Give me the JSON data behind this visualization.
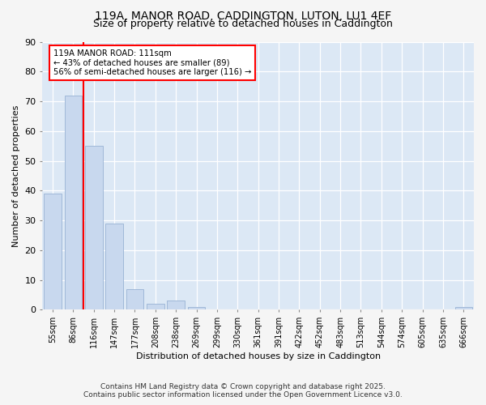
{
  "title_line1": "119A, MANOR ROAD, CADDINGTON, LUTON, LU1 4EF",
  "title_line2": "Size of property relative to detached houses in Caddington",
  "xlabel": "Distribution of detached houses by size in Caddington",
  "ylabel": "Number of detached properties",
  "categories": [
    "55sqm",
    "86sqm",
    "116sqm",
    "147sqm",
    "177sqm",
    "208sqm",
    "238sqm",
    "269sqm",
    "299sqm",
    "330sqm",
    "361sqm",
    "391sqm",
    "422sqm",
    "452sqm",
    "483sqm",
    "513sqm",
    "544sqm",
    "574sqm",
    "605sqm",
    "635sqm",
    "666sqm"
  ],
  "values": [
    39,
    72,
    55,
    29,
    7,
    2,
    3,
    1,
    0,
    0,
    0,
    0,
    0,
    0,
    0,
    0,
    0,
    0,
    0,
    0,
    1
  ],
  "bar_color": "#c8d8ee",
  "bar_edge_color": "#a0b8d8",
  "vline_x": 2,
  "vline_color": "red",
  "annotation_text": "119A MANOR ROAD: 111sqm\n← 43% of detached houses are smaller (89)\n56% of semi-detached houses are larger (116) →",
  "annotation_box_color": "white",
  "annotation_box_edge": "red",
  "ylim": [
    0,
    90
  ],
  "yticks": [
    0,
    10,
    20,
    30,
    40,
    50,
    60,
    70,
    80,
    90
  ],
  "plot_bg_color": "#dce8f5",
  "fig_bg_color": "#f5f5f5",
  "footer_line1": "Contains HM Land Registry data © Crown copyright and database right 2025.",
  "footer_line2": "Contains public sector information licensed under the Open Government Licence v3.0."
}
